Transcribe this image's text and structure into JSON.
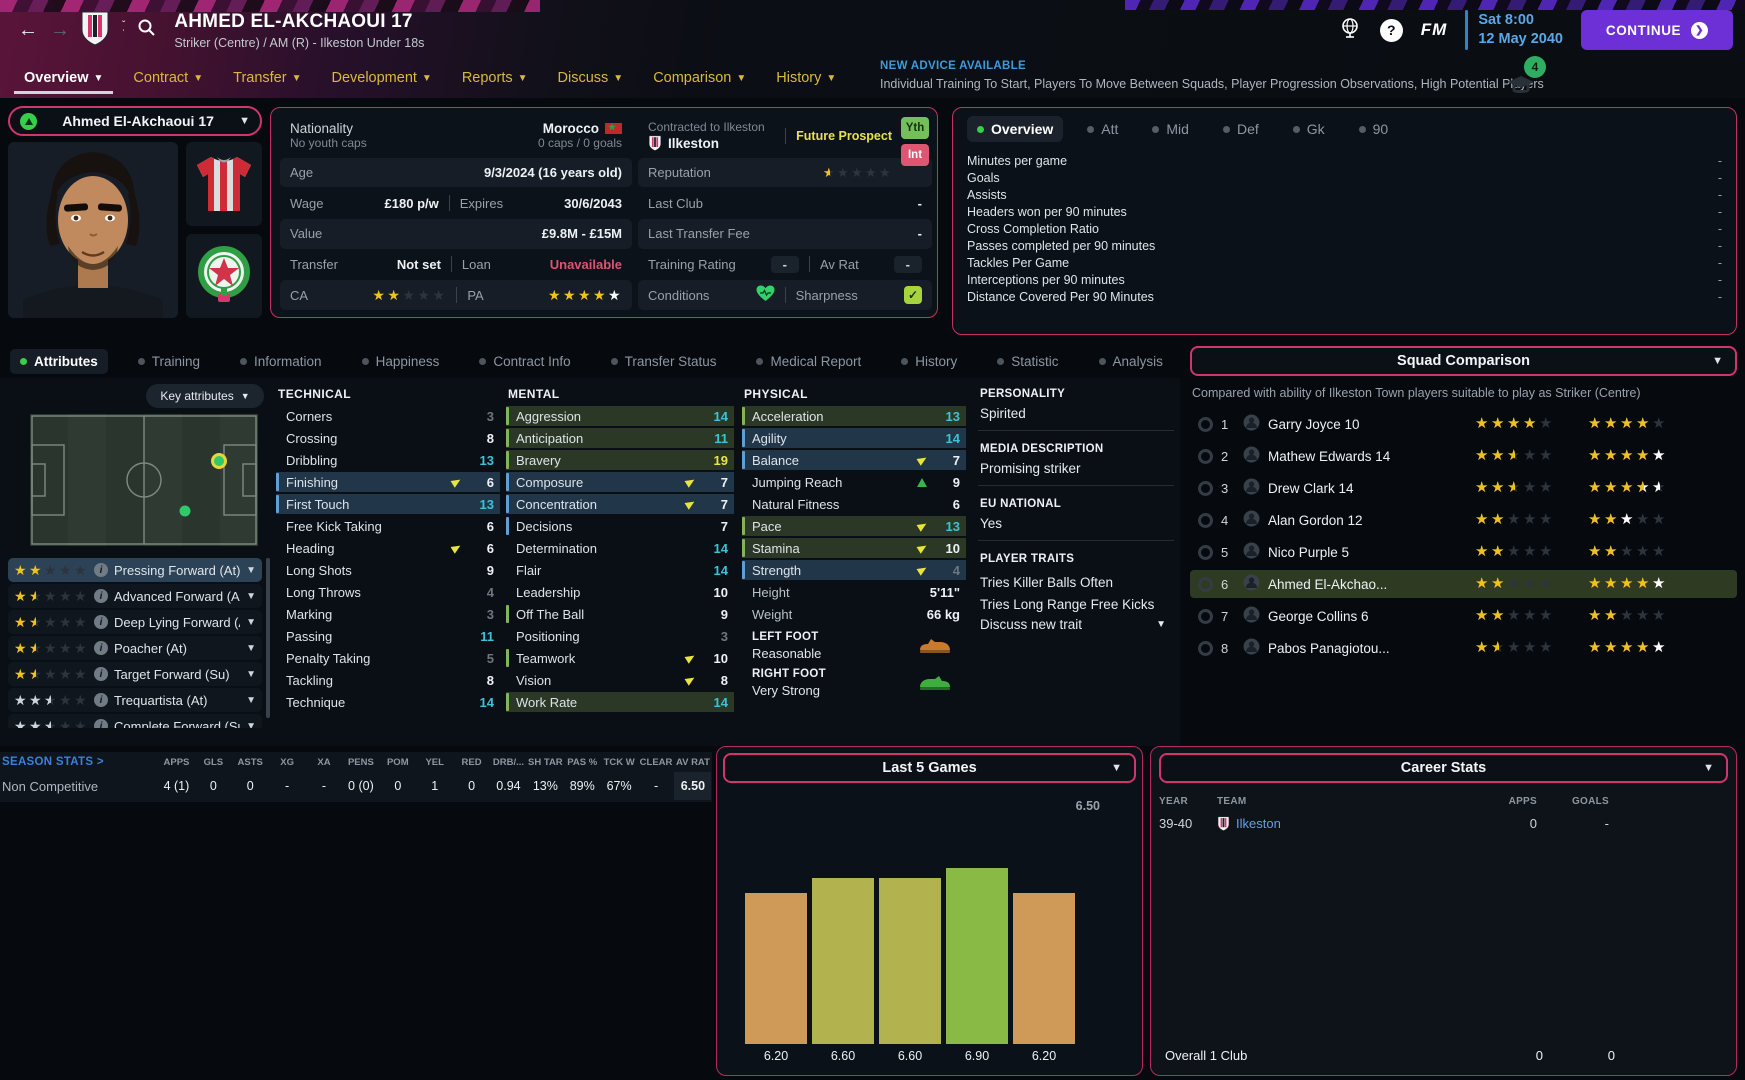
{
  "header": {
    "title": "AHMED EL-AKCHAOUI 17",
    "subtitle": "Striker (Centre) / AM (R) - Ilkeston Under 18s",
    "date_day": "Sat 8:00",
    "date_full": "12 May 2040",
    "continue_label": "CONTINUE",
    "fm_label": "FM"
  },
  "advice": {
    "heading": "NEW ADVICE AVAILABLE",
    "text": "Individual Training To Start, Players To Move Between Squads, Player Progression Observations, High Potential Players",
    "badge": "4"
  },
  "nav_tabs": [
    {
      "label": "Overview",
      "selected": true
    },
    {
      "label": "Contract"
    },
    {
      "label": "Transfer"
    },
    {
      "label": "Development"
    },
    {
      "label": "Reports"
    },
    {
      "label": "Discuss"
    },
    {
      "label": "Comparison"
    },
    {
      "label": "History"
    }
  ],
  "player": {
    "selector_name": "Ahmed El-Akchaoui 17"
  },
  "info": {
    "nationality": {
      "label": "Nationality",
      "sub": "No youth caps",
      "country": "Morocco",
      "caps": "0 caps / 0 goals"
    },
    "contracted": {
      "label": "Contracted to Ilkeston",
      "club": "Ilkeston",
      "status": "Future Prospect"
    },
    "badges": {
      "youth": "Yth",
      "international": "Int"
    },
    "age": {
      "label": "Age",
      "value": "9/3/2024 (16 years old)"
    },
    "reputation": {
      "label": "Reputation",
      "stars": {
        "gold": 0.5
      }
    },
    "wage": {
      "label": "Wage",
      "value": "£180 p/w",
      "expires_label": "Expires",
      "expires": "30/6/2043"
    },
    "last_club": {
      "label": "Last Club",
      "value": "-"
    },
    "value": {
      "label": "Value",
      "value": "£9.8M - £15M"
    },
    "last_fee": {
      "label": "Last Transfer Fee",
      "value": "-"
    },
    "transfer": {
      "label": "Transfer",
      "value": "Not set",
      "loan_label": "Loan",
      "loan": "Unavailable"
    },
    "training": {
      "label": "Training Rating",
      "value": "-",
      "avrat_label": "Av Rat",
      "avrat": "-"
    },
    "ca": {
      "label": "CA",
      "stars": {
        "gold": 2
      }
    },
    "pa": {
      "label": "PA",
      "stars": {
        "gold": 4,
        "white": 1
      }
    },
    "conditions": {
      "label": "Conditions"
    },
    "sharpness": {
      "label": "Sharpness"
    }
  },
  "overview_panel": {
    "tabs": [
      {
        "label": "Overview",
        "selected": true
      },
      {
        "label": "Att"
      },
      {
        "label": "Mid"
      },
      {
        "label": "Def"
      },
      {
        "label": "Gk"
      },
      {
        "label": "90"
      }
    ],
    "stats": [
      {
        "label": "Minutes per game",
        "value": "-"
      },
      {
        "label": "Goals",
        "value": "-"
      },
      {
        "label": "Assists",
        "value": "-"
      },
      {
        "label": "Headers won per 90 minutes",
        "value": "-"
      },
      {
        "label": "Cross Completion Ratio",
        "value": "-"
      },
      {
        "label": "Passes completed per 90 minutes",
        "value": "-"
      },
      {
        "label": "Tackles Per Game",
        "value": "-"
      },
      {
        "label": "Interceptions per 90 minutes",
        "value": "-"
      },
      {
        "label": "Distance Covered Per 90 Minutes",
        "value": "-"
      }
    ]
  },
  "sub_tabs": [
    {
      "label": "Attributes",
      "selected": true
    },
    {
      "label": "Training"
    },
    {
      "label": "Information"
    },
    {
      "label": "Happiness"
    },
    {
      "label": "Contract Info"
    },
    {
      "label": "Transfer Status"
    },
    {
      "label": "Medical Report"
    },
    {
      "label": "History"
    },
    {
      "label": "Statistic"
    },
    {
      "label": "Analysis"
    }
  ],
  "left_panel": {
    "key_attributes_label": "Key attributes",
    "roles": [
      {
        "label": "Pressing Forward (At)",
        "stars": {
          "gold": 2
        },
        "selected": true
      },
      {
        "label": "Advanced Forward (At)",
        "stars": {
          "gold": 1.5
        }
      },
      {
        "label": "Deep Lying Forward (A...",
        "stars": {
          "gold": 1.5
        }
      },
      {
        "label": "Poacher (At)",
        "stars": {
          "gold": 1.5
        }
      },
      {
        "label": "Target Forward (Su)",
        "stars": {
          "gold": 1.5
        }
      },
      {
        "label": "Trequartista (At)",
        "stars": {
          "silver": 2.5
        }
      },
      {
        "label": "Complete Forward (Su)",
        "stars": {
          "silver": 2.5
        }
      }
    ]
  },
  "attributes": {
    "technical": {
      "title": "TECHNICAL",
      "rows": [
        {
          "label": "Corners",
          "value": "3",
          "tone": "low"
        },
        {
          "label": "Crossing",
          "value": "8",
          "tone": "mid"
        },
        {
          "label": "Dribbling",
          "value": "13",
          "tone": "good"
        },
        {
          "label": "Finishing",
          "value": "6",
          "tone": "mid",
          "tint": "blue",
          "bar": "blue",
          "arrow": "yellow"
        },
        {
          "label": "First Touch",
          "value": "13",
          "tone": "good",
          "tint": "blue",
          "bar": "blue"
        },
        {
          "label": "Free Kick Taking",
          "value": "6",
          "tone": "mid"
        },
        {
          "label": "Heading",
          "value": "6",
          "tone": "mid",
          "arrow": "yellow"
        },
        {
          "label": "Long Shots",
          "value": "9",
          "tone": "mid"
        },
        {
          "label": "Long Throws",
          "value": "4",
          "tone": "low"
        },
        {
          "label": "Marking",
          "value": "3",
          "tone": "low"
        },
        {
          "label": "Passing",
          "value": "11",
          "tone": "good"
        },
        {
          "label": "Penalty Taking",
          "value": "5",
          "tone": "low"
        },
        {
          "label": "Tackling",
          "value": "8",
          "tone": "mid"
        },
        {
          "label": "Technique",
          "value": "14",
          "tone": "good"
        }
      ]
    },
    "mental": {
      "title": "MENTAL",
      "rows": [
        {
          "label": "Aggression",
          "value": "14",
          "tone": "good",
          "tint": "green",
          "bar": "green"
        },
        {
          "label": "Anticipation",
          "value": "11",
          "tone": "good",
          "tint": "green",
          "bar": "green"
        },
        {
          "label": "Bravery",
          "value": "19",
          "tone": "high",
          "tint": "green",
          "bar": "green"
        },
        {
          "label": "Composure",
          "value": "7",
          "tone": "mid",
          "tint": "blue",
          "bar": "blue",
          "arrow": "yellow"
        },
        {
          "label": "Concentration",
          "value": "7",
          "tone": "mid",
          "tint": "blue",
          "bar": "blue",
          "arrow": "yellow"
        },
        {
          "label": "Decisions",
          "value": "7",
          "tone": "mid",
          "bar": "blue"
        },
        {
          "label": "Determination",
          "value": "14",
          "tone": "good"
        },
        {
          "label": "Flair",
          "value": "14",
          "tone": "good"
        },
        {
          "label": "Leadership",
          "value": "10",
          "tone": "mid"
        },
        {
          "label": "Off The Ball",
          "value": "9",
          "tone": "mid",
          "bar": "green"
        },
        {
          "label": "Positioning",
          "value": "3",
          "tone": "low"
        },
        {
          "label": "Teamwork",
          "value": "10",
          "tone": "mid",
          "bar": "green",
          "arrow": "yellow"
        },
        {
          "label": "Vision",
          "value": "8",
          "tone": "mid",
          "arrow": "yellow"
        },
        {
          "label": "Work Rate",
          "value": "14",
          "tone": "good",
          "tint": "green",
          "bar": "green"
        }
      ]
    },
    "physical": {
      "title": "PHYSICAL",
      "rows": [
        {
          "label": "Acceleration",
          "value": "13",
          "tone": "good",
          "tint": "green",
          "bar": "green"
        },
        {
          "label": "Agility",
          "value": "14",
          "tone": "good",
          "tint": "blue",
          "bar": "blue"
        },
        {
          "label": "Balance",
          "value": "7",
          "tone": "mid",
          "tint": "blue",
          "bar": "blue",
          "arrow": "yellow"
        },
        {
          "label": "Jumping Reach",
          "value": "9",
          "tone": "mid",
          "arrow": "green-up"
        },
        {
          "label": "Natural Fitness",
          "value": "6",
          "tone": "mid"
        },
        {
          "label": "Pace",
          "value": "13",
          "tone": "good",
          "tint": "green",
          "bar": "green",
          "arrow": "yellow"
        },
        {
          "label": "Stamina",
          "value": "10",
          "tone": "mid",
          "tint": "green",
          "bar": "green",
          "arrow": "yellow"
        },
        {
          "label": "Strength",
          "value": "4",
          "tone": "low",
          "tint": "blue",
          "bar": "blue",
          "arrow": "yellow"
        }
      ],
      "height": {
        "label": "Height",
        "value": "5'11\""
      },
      "weight": {
        "label": "Weight",
        "value": "66 kg"
      },
      "left_foot": {
        "label": "LEFT FOOT",
        "value": "Reasonable"
      },
      "right_foot": {
        "label": "RIGHT FOOT",
        "value": "Very Strong"
      }
    }
  },
  "personality": {
    "personality_label": "PERSONALITY",
    "personality_value": "Spirited",
    "media_label": "MEDIA DESCRIPTION",
    "media_value": "Promising striker",
    "eu_label": "EU NATIONAL",
    "eu_value": "Yes",
    "traits_label": "PLAYER TRAITS",
    "traits": [
      "Tries Killer Balls Often",
      "Tries Long Range Free Kicks"
    ],
    "discuss_label": "Discuss new trait"
  },
  "squad_comparison": {
    "title": "Squad Comparison",
    "subtitle": "Compared with ability of Ilkeston Town players suitable to play as Striker (Centre)",
    "rows": [
      {
        "rank": "1",
        "name": "Garry Joyce 10",
        "ca": {
          "gold": 4
        },
        "pa": {
          "gold": 4
        }
      },
      {
        "rank": "2",
        "name": "Mathew Edwards 14",
        "ca": {
          "gold": 2.5
        },
        "pa": {
          "gold": 4,
          "white": 1
        }
      },
      {
        "rank": "3",
        "name": "Drew Clark 14",
        "ca": {
          "gold": 2.5
        },
        "pa": {
          "gold": 3.5,
          "white": 1
        }
      },
      {
        "rank": "4",
        "name": "Alan Gordon 12",
        "ca": {
          "gold": 2
        },
        "pa": {
          "gold": 2,
          "white": 1
        }
      },
      {
        "rank": "5",
        "name": "Nico Purple 5",
        "ca": {
          "gold": 2
        },
        "pa": {
          "gold": 2
        }
      },
      {
        "rank": "6",
        "name": "Ahmed El-Akchao...",
        "ca": {
          "gold": 2
        },
        "pa": {
          "gold": 4,
          "white": 1
        },
        "highlighted": true
      },
      {
        "rank": "7",
        "name": "George Collins 6",
        "ca": {
          "gold": 2
        },
        "pa": {
          "gold": 2
        }
      },
      {
        "rank": "8",
        "name": "Pabos Panagiotou...",
        "ca": {
          "gold": 1.5
        },
        "pa": {
          "gold": 4,
          "white": 1
        }
      }
    ]
  },
  "season_stats": {
    "heading": "SEASON STATS >",
    "row_label": "Non Competitive",
    "headers": [
      "APPS",
      "GLS",
      "ASTS",
      "XG",
      "XA",
      "PENS",
      "POM",
      "YEL",
      "RED",
      "DRB/...",
      "SH TAR",
      "PAS %",
      "TCK W",
      "CLEAR",
      "AV RAT"
    ],
    "values": [
      "4 (1)",
      "0",
      "0",
      "-",
      "-",
      "0 (0)",
      "0",
      "1",
      "0",
      "0.94",
      "13%",
      "89%",
      "67%",
      "-",
      "6.50"
    ]
  },
  "last5": {
    "title": "Last 5 Games",
    "avg": "6.50",
    "bars": [
      {
        "label": "6.20",
        "value": 6.2,
        "color": "#cf9a58"
      },
      {
        "label": "6.60",
        "value": 6.6,
        "color": "#b2b24f"
      },
      {
        "label": "6.60",
        "value": 6.6,
        "color": "#b2b24f"
      },
      {
        "label": "6.90",
        "value": 6.9,
        "color": "#88ba45"
      },
      {
        "label": "6.20",
        "value": 6.2,
        "color": "#cf9a58"
      }
    ]
  },
  "career": {
    "title": "Career Stats",
    "headers": [
      "YEAR",
      "TEAM",
      "APPS",
      "GOALS"
    ],
    "rows": [
      {
        "year": "39-40",
        "team": "Ilkeston",
        "apps": "0",
        "goals": "-"
      }
    ],
    "footer": {
      "label": "Overall 1 Club",
      "apps": "0",
      "goals": "0"
    }
  }
}
